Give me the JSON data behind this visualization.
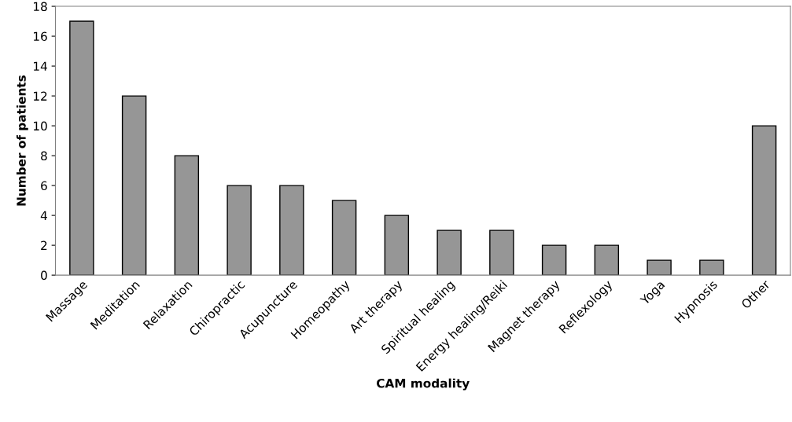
{
  "chart_data": {
    "type": "bar",
    "xlabel": "CAM modality",
    "ylabel": "Number of patients",
    "categories": [
      "Massage",
      "Meditation",
      "Relaxation",
      "Chiropractic",
      "Acupuncture",
      "Homeopathy",
      "Art therapy",
      "Spiritual healing",
      "Energy healing/Reiki",
      "Magnet therapy",
      "Reflexology",
      "Yoga",
      "Hypnosis",
      "Other"
    ],
    "values": [
      17,
      12,
      8,
      6,
      6,
      5,
      4,
      3,
      3,
      2,
      2,
      1,
      1,
      10
    ],
    "color": "#969696",
    "ylim": [
      0,
      18
    ],
    "yticks": [
      0,
      2,
      4,
      6,
      8,
      10,
      12,
      14,
      16,
      18
    ],
    "grid": false
  }
}
